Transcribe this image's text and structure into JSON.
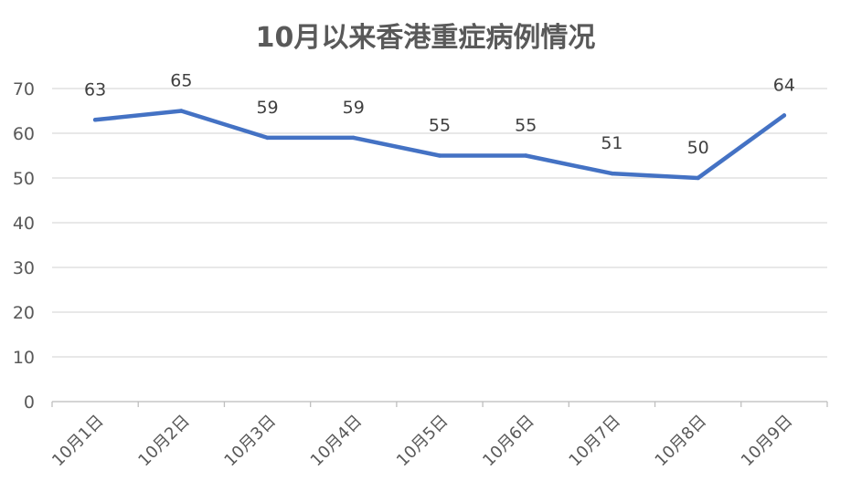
{
  "chart_data": {
    "type": "line",
    "title": "10月以来香港重症病例情况",
    "xlabel": "",
    "ylabel": "",
    "categories": [
      "10月1日",
      "10月2日",
      "10月3日",
      "10月4日",
      "10月5日",
      "10月6日",
      "10月7日",
      "10月8日",
      "10月9日"
    ],
    "series": [
      {
        "values": [
          63,
          65,
          59,
          59,
          55,
          55,
          51,
          50,
          64
        ],
        "color": "#4472C4"
      }
    ],
    "yticks": [
      0,
      10,
      20,
      30,
      40,
      50,
      60,
      70
    ],
    "ylim": [
      0,
      70
    ],
    "grid": true,
    "data_labels": true,
    "legend": "none"
  }
}
